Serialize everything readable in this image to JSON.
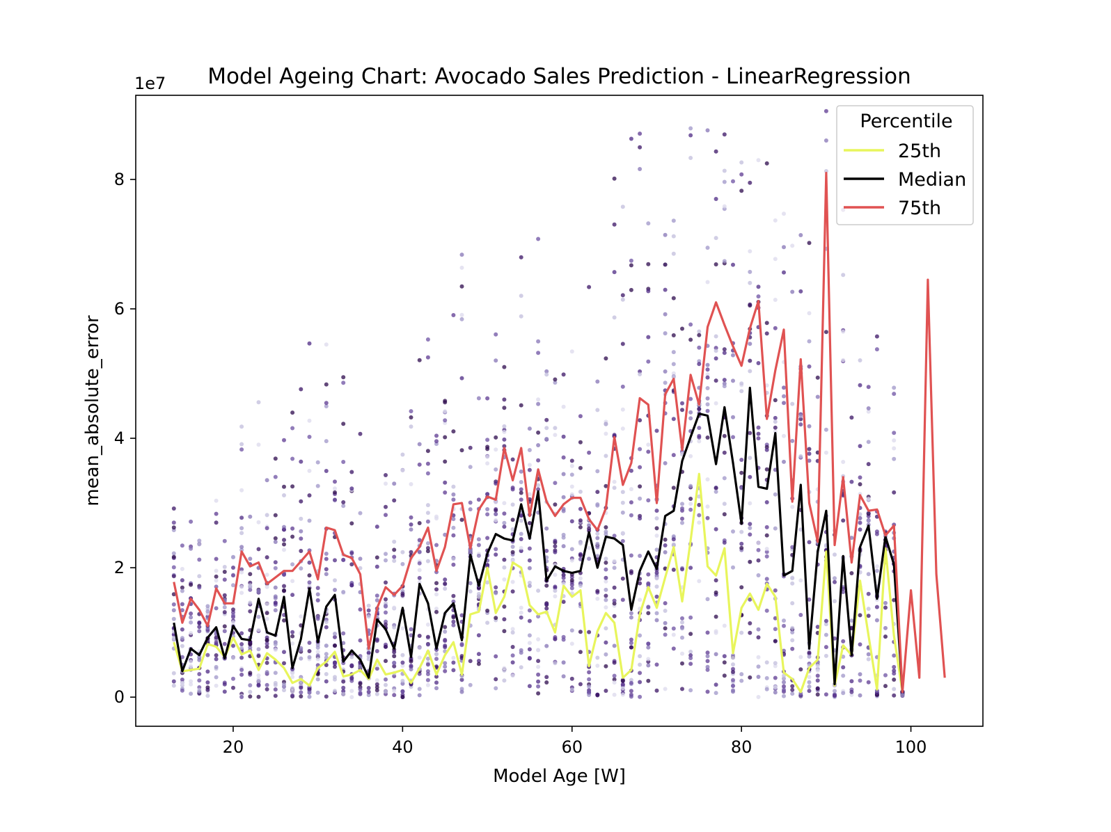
{
  "chart_data": {
    "type": "line",
    "title": "Model Ageing Chart: Avocado Sales Prediction - LinearRegression",
    "xlabel": "Model Age [W]",
    "ylabel": "mean_absolute_error",
    "y_offset_label": "1e7",
    "xlim": [
      8.5,
      108.5
    ],
    "ylim": [
      -4500000,
      93000000
    ],
    "x_ticks": [
      20,
      40,
      60,
      80,
      100
    ],
    "y_ticks": [
      0,
      20000000,
      40000000,
      60000000,
      80000000
    ],
    "y_tick_labels": [
      "0",
      "2",
      "4",
      "6",
      "8"
    ],
    "grid": false,
    "legend": {
      "title": "Percentile",
      "position": "top-right"
    },
    "x": [
      13,
      14,
      15,
      16,
      17,
      18,
      19,
      20,
      21,
      22,
      23,
      24,
      25,
      26,
      27,
      28,
      29,
      30,
      31,
      32,
      33,
      34,
      35,
      36,
      37,
      38,
      39,
      40,
      41,
      42,
      43,
      44,
      45,
      46,
      47,
      48,
      49,
      50,
      51,
      52,
      53,
      54,
      55,
      56,
      57,
      58,
      59,
      60,
      61,
      62,
      63,
      64,
      65,
      66,
      67,
      68,
      69,
      70,
      71,
      72,
      73,
      74,
      75,
      76,
      77,
      78,
      79,
      80,
      81,
      82,
      83,
      84,
      85,
      86,
      87,
      88,
      89,
      90,
      91,
      92,
      93,
      94,
      95,
      96,
      97,
      98,
      99,
      100,
      101,
      102,
      103,
      104
    ],
    "series": [
      {
        "name": "25th",
        "color": "#e8f55c",
        "values": [
          8.5,
          4.0,
          4.2,
          4.4,
          8.2,
          7.8,
          6.2,
          9.2,
          6.6,
          7.2,
          4.2,
          6.8,
          5.8,
          4.5,
          2.2,
          2.8,
          1.8,
          4.5,
          5.5,
          7.0,
          3.2,
          3.5,
          4.2,
          2.8,
          5.8,
          3.5,
          3.8,
          4.2,
          2.2,
          4.5,
          7.2,
          3.5,
          6.5,
          8.5,
          3.5,
          12.8,
          13.2,
          20.0,
          13.0,
          15.5,
          20.8,
          20.0,
          14.2,
          12.8,
          13.2,
          10.0,
          17.2,
          15.5,
          16.5,
          4.8,
          10.2,
          13.0,
          11.5,
          3.0,
          4.2,
          12.8,
          17.0,
          13.8,
          18.5,
          23.2,
          14.8,
          24.2,
          34.5,
          20.2,
          18.8,
          23.0,
          6.8,
          13.8,
          16.0,
          13.5,
          17.5,
          15.5,
          3.8,
          2.8,
          0.8,
          4.5,
          5.8,
          22.5,
          1.8,
          8.0,
          6.5,
          18.0,
          9.5,
          1.2,
          23.0,
          9.5,
          0.8,
          null,
          null,
          null,
          null,
          null
        ]
      },
      {
        "name": "Median",
        "color": "#000000",
        "values": [
          11.5,
          4.0,
          7.5,
          6.5,
          9.2,
          10.8,
          6.0,
          11.0,
          9.0,
          8.8,
          15.2,
          10.0,
          9.5,
          15.5,
          4.5,
          9.0,
          16.8,
          8.5,
          14.0,
          15.8,
          5.5,
          7.2,
          5.8,
          3.0,
          12.0,
          10.5,
          7.5,
          13.8,
          6.2,
          17.5,
          14.5,
          7.5,
          13.0,
          14.5,
          8.8,
          22.0,
          17.2,
          22.2,
          25.2,
          24.5,
          24.2,
          29.8,
          24.5,
          31.8,
          18.0,
          20.2,
          19.5,
          19.2,
          19.5,
          25.5,
          20.0,
          24.8,
          24.5,
          23.5,
          13.5,
          19.5,
          22.5,
          19.8,
          28.0,
          28.8,
          36.5,
          40.2,
          43.8,
          43.5,
          36.0,
          44.8,
          36.2,
          26.8,
          47.8,
          32.5,
          32.2,
          40.8,
          18.8,
          19.5,
          32.8,
          7.5,
          22.5,
          28.8,
          2.0,
          21.8,
          6.5,
          23.2,
          26.5,
          15.2,
          24.8,
          20.5,
          0.8,
          null,
          null,
          null,
          null,
          null
        ]
      },
      {
        "name": "75th",
        "color": "#e05252",
        "values": [
          17.8,
          11.5,
          15.2,
          13.5,
          11.0,
          16.8,
          14.5,
          14.5,
          22.5,
          20.2,
          20.8,
          17.5,
          18.5,
          19.5,
          19.5,
          21.0,
          22.5,
          18.2,
          26.2,
          25.8,
          22.0,
          21.5,
          19.0,
          7.5,
          13.8,
          17.0,
          15.8,
          17.2,
          21.5,
          23.2,
          26.2,
          19.5,
          23.2,
          29.8,
          30.0,
          23.0,
          29.0,
          31.0,
          30.5,
          38.5,
          33.5,
          38.5,
          28.0,
          35.2,
          30.2,
          28.0,
          29.8,
          30.8,
          30.8,
          27.5,
          25.8,
          29.2,
          40.2,
          32.8,
          36.2,
          46.2,
          45.2,
          30.0,
          46.8,
          49.2,
          38.2,
          49.8,
          45.2,
          57.2,
          61.0,
          57.5,
          54.2,
          51.2,
          57.0,
          61.2,
          43.0,
          50.5,
          56.8,
          30.2,
          52.2,
          30.0,
          24.0,
          81.0,
          23.5,
          34.0,
          20.8,
          31.2,
          28.8,
          29.0,
          25.0,
          26.5,
          0.8,
          16.5,
          3.0,
          64.5,
          19.0,
          3.0
        ]
      }
    ],
    "scatter_note": "per-run observations, colored by run index"
  }
}
